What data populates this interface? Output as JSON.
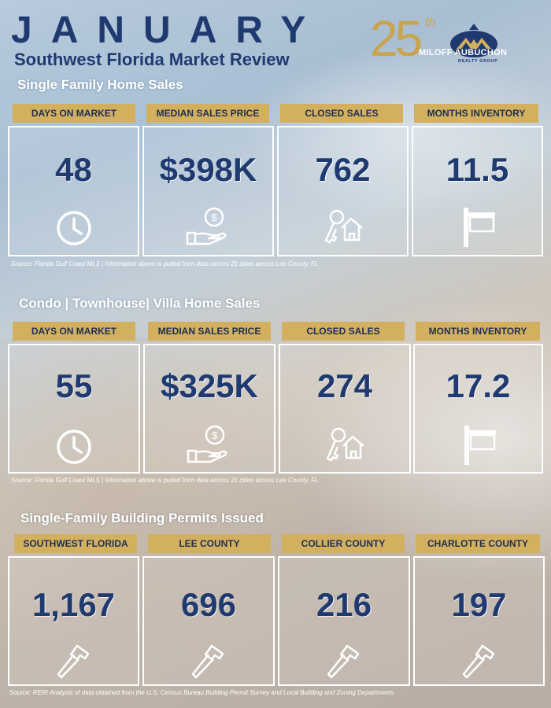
{
  "header": {
    "month": "JANUARY",
    "subtitle": "Southwest Florida Market Review"
  },
  "logo": {
    "anniversary_number": "25",
    "anniversary_suffix": "th",
    "brand_name": "MILOFF AUBUCHON",
    "brand_subtitle": "REALTY GROUP",
    "emblem_icon": "house-roof-emblem-icon",
    "colors": {
      "gold": "#c9a44f",
      "navy": "#1f3a70"
    }
  },
  "single_family": {
    "title": "Single Family Home Sales",
    "stats": [
      {
        "label": "DAYS ON MARKET",
        "value": "48",
        "icon": "clock-icon"
      },
      {
        "label": "MEDIAN SALES PRICE",
        "value": "$398K",
        "icon": "money-hand-icon"
      },
      {
        "label": "CLOSED SALES",
        "value": "762",
        "icon": "house-key-icon"
      },
      {
        "label": "MONTHS INVENTORY",
        "value": "11.5",
        "icon": "for-sale-sign-icon"
      }
    ],
    "source": "Source: Florida Gulf Coast MLS | Information above is pulled from data across 21 cities across Lee County, FL"
  },
  "condo": {
    "title": "Condo | Townhouse| Villa Home Sales",
    "stats": [
      {
        "label": "DAYS ON MARKET",
        "value": "55",
        "icon": "clock-icon"
      },
      {
        "label": "MEDIAN SALES PRICE",
        "value": "$325K",
        "icon": "money-hand-icon"
      },
      {
        "label": "CLOSED SALES",
        "value": "274",
        "icon": "house-key-icon"
      },
      {
        "label": "MONTHS INVENTORY",
        "value": "17.2",
        "icon": "for-sale-sign-icon"
      }
    ],
    "source": "Source: Florida Gulf Coast MLS | Information above is pulled from data across 21 cities across Lee County, FL"
  },
  "permits": {
    "title": "Single-Family Building Permits Issued",
    "stats": [
      {
        "label": "SOUTHWEST FLORIDA",
        "value": "1,167",
        "icon": "hammer-icon"
      },
      {
        "label": "LEE COUNTY",
        "value": "696",
        "icon": "hammer-icon"
      },
      {
        "label": "COLLIER COUNTY",
        "value": "216",
        "icon": "hammer-icon"
      },
      {
        "label": "CHARLOTTE COUNTY",
        "value": "197",
        "icon": "hammer-icon"
      }
    ],
    "source": "Source: RERI Analysis of data obtained from the U.S. Census Bureau Building Permit Survey and Local Building and Zoning Departments"
  },
  "colors": {
    "navy": "#1f3a70",
    "gold_label": "#d3b05e",
    "card_border": "#ffffff"
  }
}
